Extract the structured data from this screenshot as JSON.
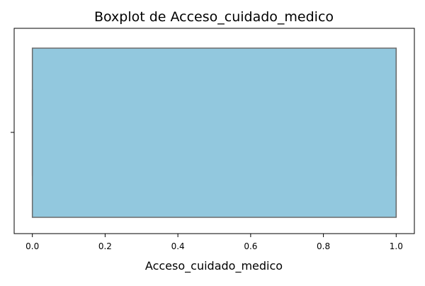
{
  "chart_data": {
    "type": "boxplot",
    "orientation": "horizontal",
    "title": "Boxplot de Acceso_cuidado_medico",
    "xlabel": "Acceso_cuidado_medico",
    "ylabel": "",
    "xlim": [
      -0.05,
      1.05
    ],
    "x_ticks": [
      0.0,
      0.2,
      0.4,
      0.6,
      0.8,
      1.0
    ],
    "x_tick_labels": [
      "0.0",
      "0.2",
      "0.4",
      "0.6",
      "0.8",
      "1.0"
    ],
    "grid": false,
    "box": {
      "min": 0.0,
      "q1": 0.0,
      "median": 1.0,
      "q3": 1.0,
      "max": 1.0
    },
    "colors": {
      "box_fill": "#92c8de",
      "box_edge": "#6b6b6b",
      "axis": "#000000"
    }
  }
}
